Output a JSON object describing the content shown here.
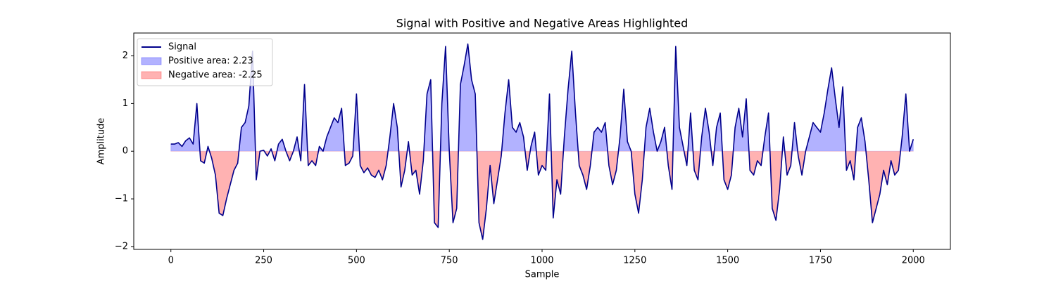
{
  "chart_data": {
    "type": "line",
    "title": "Signal with Positive and Negative Areas Highlighted",
    "xlabel": "Sample",
    "ylabel": "Amplitude",
    "x": [
      0,
      10,
      20,
      30,
      40,
      50,
      60,
      70,
      80,
      90,
      100,
      110,
      120,
      130,
      140,
      150,
      160,
      170,
      180,
      190,
      200,
      210,
      220,
      230,
      240,
      250,
      260,
      270,
      280,
      290,
      300,
      310,
      320,
      330,
      340,
      350,
      360,
      370,
      380,
      390,
      400,
      410,
      420,
      430,
      440,
      450,
      460,
      470,
      480,
      490,
      500,
      510,
      520,
      530,
      540,
      550,
      560,
      570,
      580,
      590,
      600,
      610,
      620,
      630,
      640,
      650,
      660,
      670,
      680,
      690,
      700,
      710,
      720,
      730,
      740,
      750,
      760,
      770,
      780,
      790,
      800,
      810,
      820,
      830,
      840,
      850,
      860,
      870,
      880,
      890,
      900,
      910,
      920,
      930,
      940,
      950,
      960,
      970,
      980,
      990,
      1000,
      1010,
      1020,
      1030,
      1040,
      1050,
      1060,
      1070,
      1080,
      1090,
      1100,
      1110,
      1120,
      1130,
      1140,
      1150,
      1160,
      1170,
      1180,
      1190,
      1200,
      1210,
      1220,
      1230,
      1240,
      1250,
      1260,
      1270,
      1280,
      1290,
      1300,
      1310,
      1320,
      1330,
      1340,
      1350,
      1360,
      1370,
      1380,
      1390,
      1400,
      1410,
      1420,
      1430,
      1440,
      1450,
      1460,
      1470,
      1480,
      1490,
      1500,
      1510,
      1520,
      1530,
      1540,
      1550,
      1560,
      1570,
      1580,
      1590,
      1600,
      1610,
      1620,
      1630,
      1640,
      1650,
      1660,
      1670,
      1680,
      1690,
      1700,
      1710,
      1720,
      1730,
      1740,
      1750,
      1760,
      1770,
      1780,
      1790,
      1800,
      1810,
      1820,
      1830,
      1840,
      1850,
      1860,
      1870,
      1880,
      1890,
      1900,
      1910,
      1920,
      1930,
      1940,
      1950,
      1960,
      1970,
      1980,
      1990,
      2000
    ],
    "series": [
      {
        "name": "Signal",
        "color": "#00008b",
        "values": [
          0.15,
          0.15,
          0.18,
          0.1,
          0.22,
          0.28,
          0.15,
          1.0,
          -0.2,
          -0.25,
          0.1,
          -0.15,
          -0.5,
          -1.3,
          -1.35,
          -1.0,
          -0.7,
          -0.4,
          -0.25,
          0.5,
          0.6,
          0.95,
          2.1,
          -0.6,
          0.0,
          0.02,
          -0.1,
          0.05,
          -0.2,
          0.15,
          0.25,
          0.0,
          -0.2,
          0.0,
          0.3,
          -0.2,
          1.4,
          -0.3,
          -0.2,
          -0.3,
          0.1,
          0.0,
          0.3,
          0.5,
          0.7,
          0.6,
          0.9,
          -0.3,
          -0.25,
          -0.1,
          1.2,
          -0.3,
          -0.45,
          -0.35,
          -0.5,
          -0.55,
          -0.4,
          -0.6,
          -0.3,
          0.3,
          1.0,
          0.5,
          -0.75,
          -0.4,
          0.2,
          -0.5,
          -0.4,
          -0.9,
          -0.2,
          1.2,
          1.5,
          -1.5,
          -1.6,
          1.0,
          2.2,
          0.0,
          -1.5,
          -1.2,
          1.4,
          1.8,
          2.25,
          1.5,
          1.2,
          -1.5,
          -1.85,
          -1.2,
          -0.3,
          -1.1,
          -0.6,
          -0.1,
          0.8,
          1.5,
          0.5,
          0.4,
          0.6,
          0.3,
          -0.4,
          0.1,
          0.4,
          -0.5,
          -0.3,
          -0.4,
          1.2,
          -1.4,
          -0.6,
          -0.9,
          0.3,
          1.3,
          2.1,
          0.8,
          -0.3,
          -0.5,
          -0.8,
          -0.3,
          0.4,
          0.5,
          0.4,
          0.6,
          -0.3,
          -0.7,
          -0.4,
          0.3,
          1.3,
          0.2,
          0.0,
          -0.9,
          -1.3,
          -0.6,
          0.5,
          0.9,
          0.4,
          0.0,
          0.2,
          0.5,
          -0.3,
          -0.8,
          2.2,
          0.5,
          0.1,
          -0.3,
          0.8,
          -0.4,
          -0.6,
          0.3,
          0.9,
          0.4,
          -0.3,
          0.5,
          0.8,
          -0.6,
          -0.8,
          -0.5,
          0.5,
          0.9,
          0.3,
          1.1,
          -0.4,
          -0.5,
          -0.2,
          -0.3,
          0.3,
          0.8,
          -1.2,
          -1.45,
          -0.8,
          0.3,
          -0.5,
          -0.3,
          0.6,
          -0.1,
          -0.5,
          0.0,
          0.3,
          0.6,
          0.5,
          0.4,
          0.8,
          1.3,
          1.75,
          1.1,
          0.5,
          1.35,
          -0.4,
          -0.2,
          -0.6,
          0.5,
          0.7,
          0.2,
          -0.6,
          -1.5,
          -1.2,
          -0.9,
          -0.4,
          -0.7,
          -0.2,
          -0.5,
          -0.4,
          0.3,
          1.2,
          0.0,
          0.25
        ]
      }
    ],
    "fills": [
      {
        "name": "Positive area: 2.23",
        "color": "#0000ff",
        "opacity": 0.3,
        "where": "positive"
      },
      {
        "name": "Negative area: -2.25",
        "color": "#ff0000",
        "opacity": 0.3,
        "where": "negative"
      }
    ],
    "xlim": [
      -100,
      2100
    ],
    "ylim": [
      -2.06,
      2.48
    ],
    "xticks": [
      0,
      250,
      500,
      750,
      1000,
      1250,
      1500,
      1750,
      2000
    ],
    "yticks": [
      {
        "value": -2,
        "label": "−2"
      },
      {
        "value": -1,
        "label": "−1"
      },
      0,
      1,
      2
    ],
    "grid": false,
    "legend": "upper-left"
  }
}
